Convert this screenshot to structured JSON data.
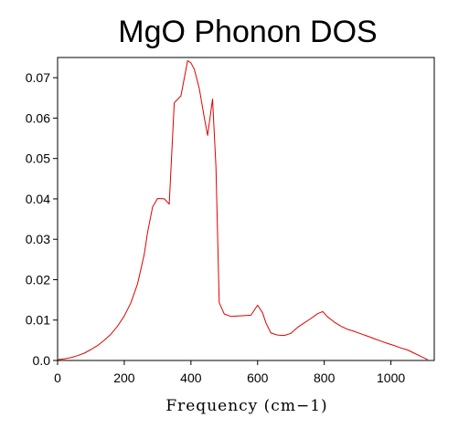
{
  "chart_data": {
    "type": "line",
    "title": "MgO Phonon DOS",
    "xlabel": "Frequency (cm−1)",
    "ylabel": "",
    "xlim": [
      0,
      1130
    ],
    "ylim": [
      0,
      0.075
    ],
    "x_ticks": [
      0,
      200,
      400,
      600,
      800,
      1000
    ],
    "y_ticks": [
      0.0,
      0.01,
      0.02,
      0.03,
      0.04,
      0.05,
      0.06,
      0.07
    ],
    "x_tick_labels": [
      "0",
      "200",
      "400",
      "600",
      "800",
      "1000"
    ],
    "y_tick_labels": [
      "0.0",
      "0.01",
      "0.02",
      "0.03",
      "0.04",
      "0.05",
      "0.06",
      "0.07"
    ],
    "grid": false,
    "legend": "none",
    "series": [
      {
        "color": "#e00000",
        "x": [
          0,
          20,
          40,
          60,
          80,
          100,
          120,
          140,
          160,
          180,
          200,
          220,
          240,
          260,
          270,
          285,
          300,
          320,
          335,
          350,
          370,
          390,
          400,
          410,
          425,
          440,
          450,
          465,
          475,
          485,
          500,
          520,
          540,
          560,
          580,
          600,
          615,
          625,
          640,
          660,
          680,
          700,
          720,
          740,
          760,
          780,
          795,
          810,
          830,
          850,
          870,
          890,
          910,
          930,
          950,
          970,
          990,
          1010,
          1030,
          1050,
          1070,
          1090,
          1110
        ],
        "y": [
          0.0002,
          0.0004,
          0.0007,
          0.0012,
          0.0018,
          0.0027,
          0.0037,
          0.005,
          0.0065,
          0.0085,
          0.011,
          0.0143,
          0.019,
          0.0263,
          0.0317,
          0.038,
          0.0401,
          0.04,
          0.0387,
          0.0638,
          0.0655,
          0.0742,
          0.0737,
          0.0721,
          0.0673,
          0.0602,
          0.0557,
          0.0647,
          0.048,
          0.0143,
          0.0115,
          0.0109,
          0.011,
          0.0111,
          0.0112,
          0.0137,
          0.0118,
          0.0093,
          0.0068,
          0.0063,
          0.0062,
          0.0067,
          0.0082,
          0.0093,
          0.0104,
          0.0116,
          0.0121,
          0.0108,
          0.0095,
          0.0085,
          0.0077,
          0.0072,
          0.0066,
          0.006,
          0.0054,
          0.0048,
          0.0042,
          0.0037,
          0.0031,
          0.0026,
          0.0018,
          0.001,
          0.0002
        ]
      }
    ]
  }
}
